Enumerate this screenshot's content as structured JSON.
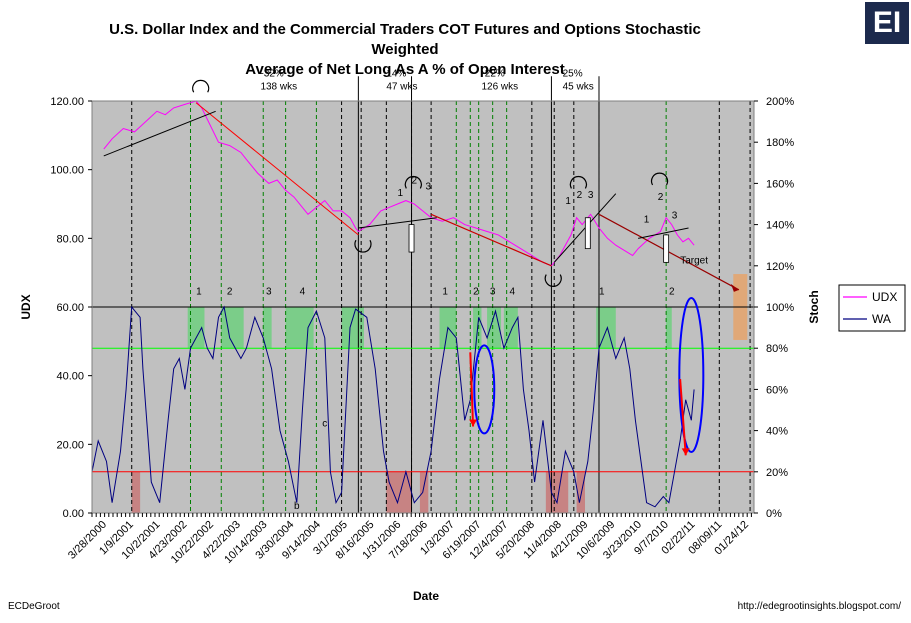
{
  "brand_badge": "EI",
  "footer": {
    "author": "ECDeGroot",
    "url": "http://edegrootinsights.blogspot.com/"
  },
  "chart_data": {
    "type": "line",
    "title": "U.S. Dollar Index and the Commercial Traders COT Futures and Options Stochastic Weighted Average of Net Long As A % of Open Interest",
    "title_lines": [
      "U.S. Dollar Index and the Commercial Traders COT Futures and Options Stochastic Weighted",
      "Average of Net Long As A % of Open Interest"
    ],
    "xlabel": "Date",
    "ylabel_left": "UDX",
    "ylabel_right": "Stoch",
    "ylim_left": [
      0,
      120
    ],
    "ylim_right": [
      0,
      200
    ],
    "y_ticks_left": [
      "0.00",
      "20.00",
      "40.00",
      "60.00",
      "80.00",
      "100.00",
      "120.00"
    ],
    "y_ticks_right": [
      "0%",
      "20%",
      "40%",
      "60%",
      "80%",
      "100%",
      "120%",
      "140%",
      "160%",
      "180%",
      "200%"
    ],
    "x_tick_labels": [
      "3/28/2000",
      "1/9/2001",
      "10/2/2001",
      "4/23/2002",
      "10/22/2002",
      "4/22/2003",
      "10/14/2003",
      "3/30/2004",
      "9/14/2004",
      "3/1/2005",
      "8/16/2005",
      "1/31/2006",
      "7/18/2006",
      "1/3/2007",
      "6/19/2007",
      "12/4/2007",
      "5/20/2008",
      "11/4/2008",
      "4/21/2009",
      "10/6/2009",
      "3/23/2010",
      "9/7/2010",
      "02/22/11",
      "08/09/11",
      "01/24/12"
    ],
    "x_range_years": [
      2000.24,
      2012.07
    ],
    "legend": {
      "position": "right",
      "entries": [
        {
          "name": "UDX",
          "color": "#ff00ff"
        },
        {
          "name": "WA",
          "color": "#000080"
        }
      ]
    },
    "plot_colors": {
      "background": "#c0c0c0",
      "udx": "#ff00ff",
      "wa": "#000080",
      "upper_band": "#00ff00",
      "lower_band": "#ff0000",
      "top_zone": "#6fcf7f",
      "bottom_zone": "#c87878",
      "target_zone": "#e0a878",
      "ellipse": "#0000ff",
      "arrow": "#ff0000"
    },
    "threshold_lines": [
      {
        "axis": "right",
        "value": 80,
        "color": "#00ff00"
      },
      {
        "axis": "right",
        "value": 20,
        "color": "#ff0000"
      },
      {
        "axis": "right",
        "value": 100,
        "color": "#000000"
      }
    ],
    "series": [
      {
        "name": "UDX",
        "axis": "left",
        "color": "#ff00ff",
        "points": [
          [
            2000.45,
            106
          ],
          [
            2000.6,
            109
          ],
          [
            2000.8,
            112
          ],
          [
            2001.0,
            111
          ],
          [
            2001.2,
            114
          ],
          [
            2001.4,
            117
          ],
          [
            2001.55,
            116
          ],
          [
            2001.7,
            118
          ],
          [
            2001.9,
            119
          ],
          [
            2002.0,
            119.5
          ],
          [
            2002.1,
            120
          ],
          [
            2002.2,
            118
          ],
          [
            2002.35,
            113
          ],
          [
            2002.5,
            108
          ],
          [
            2002.7,
            107
          ],
          [
            2002.9,
            105
          ],
          [
            2003.0,
            103
          ],
          [
            2003.2,
            99
          ],
          [
            2003.4,
            96
          ],
          [
            2003.55,
            97
          ],
          [
            2003.7,
            94
          ],
          [
            2003.85,
            92
          ],
          [
            2004.0,
            89
          ],
          [
            2004.1,
            87
          ],
          [
            2004.25,
            89
          ],
          [
            2004.4,
            91
          ],
          [
            2004.55,
            88
          ],
          [
            2004.7,
            88
          ],
          [
            2004.85,
            86
          ],
          [
            2004.95,
            83
          ],
          [
            2005.0,
            82
          ],
          [
            2005.2,
            84
          ],
          [
            2005.4,
            88
          ],
          [
            2005.55,
            89
          ],
          [
            2005.7,
            90
          ],
          [
            2005.85,
            91
          ],
          [
            2006.0,
            90
          ],
          [
            2006.15,
            88
          ],
          [
            2006.3,
            86
          ],
          [
            2006.5,
            85
          ],
          [
            2006.7,
            86
          ],
          [
            2006.9,
            84
          ],
          [
            2007.1,
            83
          ],
          [
            2007.3,
            82
          ],
          [
            2007.5,
            81
          ],
          [
            2007.7,
            79
          ],
          [
            2007.9,
            77
          ],
          [
            2008.1,
            75
          ],
          [
            2008.3,
            73
          ],
          [
            2008.45,
            72
          ],
          [
            2008.6,
            75
          ],
          [
            2008.8,
            81
          ],
          [
            2008.9,
            86
          ],
          [
            2009.0,
            84
          ],
          [
            2009.15,
            87
          ],
          [
            2009.3,
            83
          ],
          [
            2009.45,
            80
          ],
          [
            2009.6,
            78
          ],
          [
            2009.8,
            76
          ],
          [
            2009.9,
            75
          ],
          [
            2010.0,
            77
          ],
          [
            2010.2,
            80
          ],
          [
            2010.4,
            82
          ],
          [
            2010.5,
            86
          ],
          [
            2010.6,
            84
          ],
          [
            2010.7,
            81
          ],
          [
            2010.8,
            79
          ],
          [
            2010.9,
            80
          ],
          [
            2011.0,
            78
          ]
        ]
      },
      {
        "name": "WA",
        "axis": "right",
        "color": "#000080",
        "points": [
          [
            2000.24,
            20
          ],
          [
            2000.35,
            35
          ],
          [
            2000.5,
            25
          ],
          [
            2000.6,
            5
          ],
          [
            2000.75,
            30
          ],
          [
            2000.85,
            60
          ],
          [
            2000.95,
            100
          ],
          [
            2001.1,
            95
          ],
          [
            2001.15,
            70
          ],
          [
            2001.3,
            15
          ],
          [
            2001.45,
            5
          ],
          [
            2001.6,
            45
          ],
          [
            2001.7,
            70
          ],
          [
            2001.8,
            75
          ],
          [
            2001.9,
            60
          ],
          [
            2002.0,
            80
          ],
          [
            2002.1,
            85
          ],
          [
            2002.2,
            90
          ],
          [
            2002.3,
            80
          ],
          [
            2002.4,
            75
          ],
          [
            2002.5,
            95
          ],
          [
            2002.6,
            100
          ],
          [
            2002.7,
            85
          ],
          [
            2002.8,
            80
          ],
          [
            2002.9,
            75
          ],
          [
            2003.0,
            80
          ],
          [
            2003.15,
            95
          ],
          [
            2003.3,
            85
          ],
          [
            2003.45,
            70
          ],
          [
            2003.6,
            40
          ],
          [
            2003.75,
            25
          ],
          [
            2003.9,
            5
          ],
          [
            2004.0,
            50
          ],
          [
            2004.1,
            90
          ],
          [
            2004.25,
            98
          ],
          [
            2004.4,
            85
          ],
          [
            2004.5,
            20
          ],
          [
            2004.6,
            5
          ],
          [
            2004.7,
            10
          ],
          [
            2004.85,
            90
          ],
          [
            2004.95,
            99
          ],
          [
            2005.15,
            95
          ],
          [
            2005.3,
            70
          ],
          [
            2005.45,
            30
          ],
          [
            2005.55,
            15
          ],
          [
            2005.7,
            5
          ],
          [
            2005.85,
            20
          ],
          [
            2006.0,
            5
          ],
          [
            2006.15,
            10
          ],
          [
            2006.3,
            30
          ],
          [
            2006.45,
            65
          ],
          [
            2006.6,
            90
          ],
          [
            2006.75,
            85
          ],
          [
            2006.9,
            45
          ],
          [
            2007.0,
            55
          ],
          [
            2007.15,
            95
          ],
          [
            2007.3,
            85
          ],
          [
            2007.45,
            98
          ],
          [
            2007.6,
            80
          ],
          [
            2007.75,
            90
          ],
          [
            2007.85,
            95
          ],
          [
            2007.95,
            60
          ],
          [
            2008.05,
            40
          ],
          [
            2008.15,
            15
          ],
          [
            2008.3,
            45
          ],
          [
            2008.45,
            10
          ],
          [
            2008.55,
            5
          ],
          [
            2008.7,
            30
          ],
          [
            2008.85,
            20
          ],
          [
            2008.95,
            5
          ],
          [
            2009.1,
            25
          ],
          [
            2009.2,
            50
          ],
          [
            2009.3,
            80
          ],
          [
            2009.45,
            90
          ],
          [
            2009.6,
            75
          ],
          [
            2009.75,
            85
          ],
          [
            2009.85,
            70
          ],
          [
            2009.95,
            45
          ],
          [
            2010.05,
            25
          ],
          [
            2010.15,
            5
          ],
          [
            2010.3,
            3
          ],
          [
            2010.45,
            8
          ],
          [
            2010.55,
            5
          ],
          [
            2010.65,
            20
          ],
          [
            2010.75,
            35
          ],
          [
            2010.85,
            55
          ],
          [
            2010.95,
            45
          ],
          [
            2011.0,
            60
          ]
        ]
      }
    ],
    "wave_labels": [
      {
        "text": "1",
        "year": 2002.15,
        "pct": 106
      },
      {
        "text": "2",
        "year": 2002.7,
        "pct": 106
      },
      {
        "text": "3",
        "year": 2003.4,
        "pct": 106
      },
      {
        "text": "4",
        "year": 2004.0,
        "pct": 106
      },
      {
        "text": "1",
        "year": 2006.55,
        "pct": 106
      },
      {
        "text": "2",
        "year": 2007.1,
        "pct": 106
      },
      {
        "text": "3",
        "year": 2007.4,
        "pct": 106
      },
      {
        "text": "4",
        "year": 2007.75,
        "pct": 106
      },
      {
        "text": "1",
        "year": 2009.35,
        "pct": 106
      },
      {
        "text": "2",
        "year": 2010.6,
        "pct": 106
      },
      {
        "text": "1",
        "year": 2005.75,
        "pct": 154
      },
      {
        "text": "2",
        "year": 2006.0,
        "pct": 160
      },
      {
        "text": "3",
        "year": 2006.25,
        "pct": 157
      },
      {
        "text": "1",
        "year": 2008.75,
        "pct": 150
      },
      {
        "text": "2",
        "year": 2008.95,
        "pct": 153
      },
      {
        "text": "3",
        "year": 2009.15,
        "pct": 153
      },
      {
        "text": "1",
        "year": 2010.15,
        "pct": 141
      },
      {
        "text": "2",
        "year": 2010.4,
        "pct": 152
      },
      {
        "text": "3",
        "year": 2010.65,
        "pct": 143
      },
      {
        "text": "b",
        "year": 2003.9,
        "pct": 2
      },
      {
        "text": "c",
        "year": 2004.4,
        "pct": 42
      }
    ],
    "annotations": [
      {
        "lines": [
          "-32%",
          "138 wks"
        ],
        "year": 2003.25,
        "pct": 212
      },
      {
        "lines": [
          "14%",
          "47 wks"
        ],
        "year": 2005.5,
        "pct": 212
      },
      {
        "lines": [
          "-22%",
          "126 wks"
        ],
        "year": 2007.2,
        "pct": 212
      },
      {
        "lines": [
          "25%",
          "45 wks"
        ],
        "year": 2008.65,
        "pct": 212
      },
      {
        "lines": [
          "Target"
        ],
        "year": 2011.0,
        "pct": 121
      }
    ],
    "top_zones_years": [
      [
        2001.95,
        2002.25
      ],
      [
        2002.55,
        2002.95
      ],
      [
        2003.3,
        2003.45
      ],
      [
        2003.7,
        2004.2
      ],
      [
        2004.7,
        2005.1
      ],
      [
        2006.45,
        2006.75
      ],
      [
        2007.05,
        2007.2
      ],
      [
        2007.3,
        2007.55
      ],
      [
        2007.6,
        2007.85
      ],
      [
        2009.25,
        2009.6
      ],
      [
        2010.5,
        2010.6
      ]
    ],
    "bottom_zones_years": [
      [
        2000.95,
        2001.1
      ],
      [
        2005.5,
        2005.95
      ],
      [
        2006.1,
        2006.25
      ],
      [
        2008.35,
        2008.75
      ],
      [
        2008.9,
        2009.05
      ]
    ],
    "target_zone": {
      "years": [
        2011.7,
        2011.95
      ],
      "pct": [
        84,
        116
      ]
    }
  }
}
